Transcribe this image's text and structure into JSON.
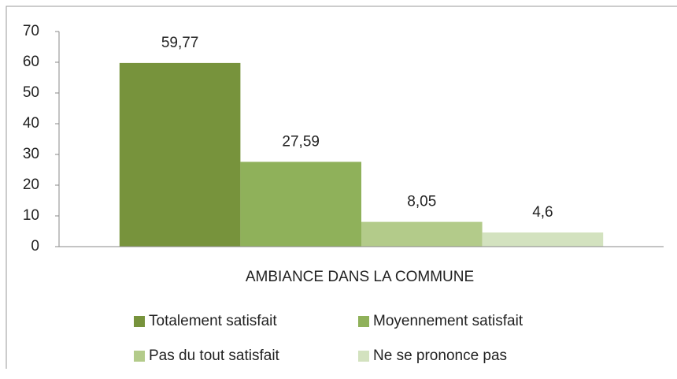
{
  "chart_data": {
    "type": "bar",
    "categories": [
      "AMBIANCE DANS LA COMMUNE"
    ],
    "series": [
      {
        "name": "Totalement satisfait",
        "color": "#77933c",
        "values": [
          59.77
        ],
        "value_labels": [
          "59,77"
        ]
      },
      {
        "name": "Moyennement satisfait",
        "color": "#8fb15a",
        "values": [
          27.59
        ],
        "value_labels": [
          "27,59"
        ]
      },
      {
        "name": "Pas du tout satisfait",
        "color": "#b3cb8a",
        "values": [
          8.05
        ],
        "value_labels": [
          "8,05"
        ]
      },
      {
        "name": "Ne se prononce pas",
        "color": "#d3e2bf",
        "values": [
          4.6
        ],
        "value_labels": [
          "4,6"
        ]
      }
    ],
    "ylim": [
      0,
      70
    ],
    "yticks": [
      0,
      10,
      20,
      30,
      40,
      50,
      60,
      70
    ],
    "grid": false,
    "legend": "bottom"
  }
}
